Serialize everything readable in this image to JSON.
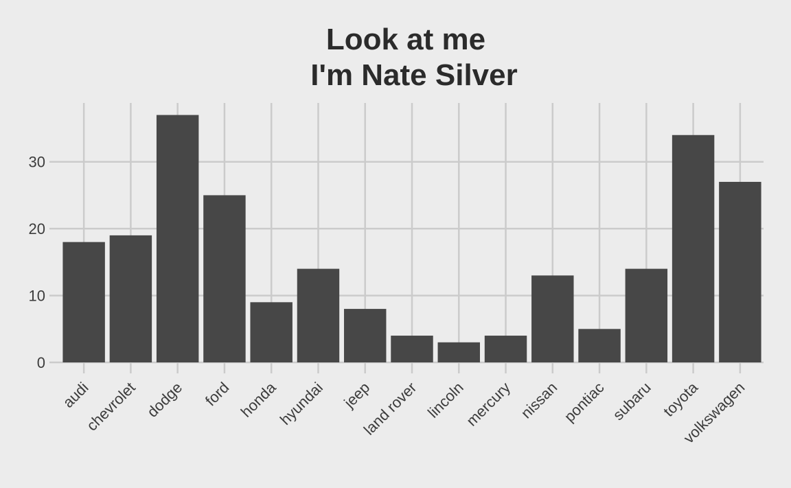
{
  "chart_data": {
    "type": "bar",
    "title": "Look at me\nI'm Nate Silver",
    "title_lines": [
      "Look at me",
      "I'm Nate Silver"
    ],
    "xlabel": "",
    "ylabel": "",
    "categories": [
      "audi",
      "chevrolet",
      "dodge",
      "ford",
      "honda",
      "hyundai",
      "jeep",
      "land rover",
      "lincoln",
      "mercury",
      "nissan",
      "pontiac",
      "subaru",
      "toyota",
      "volkswagen"
    ],
    "values": [
      18,
      19,
      37,
      25,
      9,
      14,
      8,
      4,
      3,
      4,
      13,
      5,
      14,
      34,
      27
    ],
    "ylim": [
      0,
      38.8
    ],
    "yticks": [
      0,
      10,
      20,
      30
    ],
    "grid": true,
    "legend": "none",
    "bar_color": "#474747",
    "grid_color": "#cbcbcb",
    "background_color": "#ececec"
  }
}
